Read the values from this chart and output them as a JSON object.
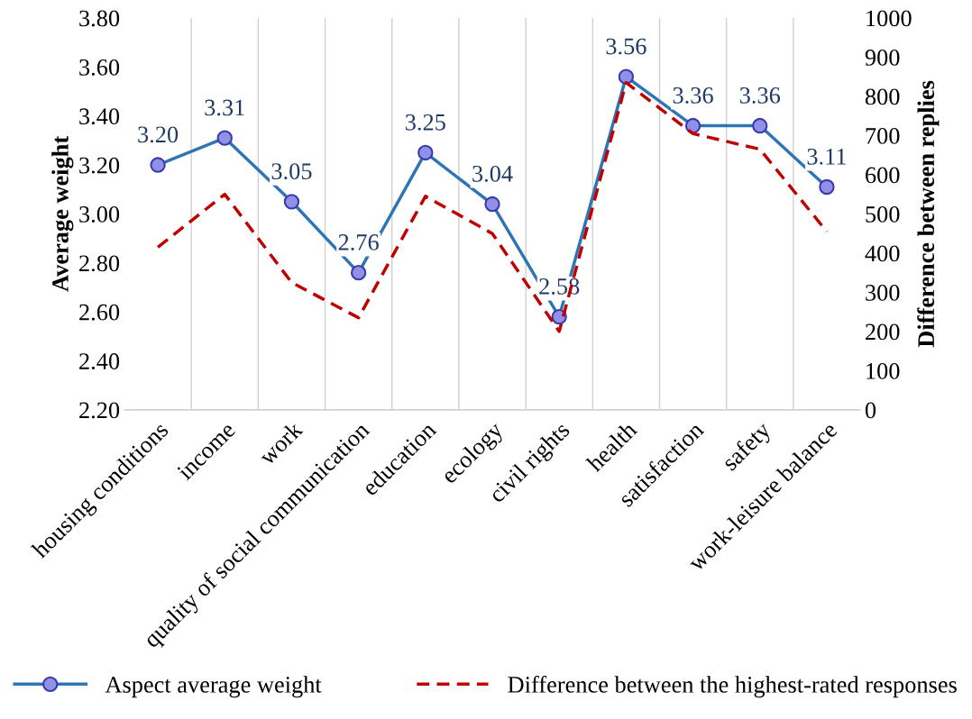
{
  "chart_data": {
    "type": "line",
    "categories": [
      "housing conditions",
      "income",
      "work",
      "quality of social communication",
      "education",
      "ecology",
      "civil rights",
      "health",
      "satisfaction",
      "safety",
      "work-leisure balance"
    ],
    "series": [
      {
        "name": "Aspect average weight",
        "color": "#2e75b6",
        "marker": "circle",
        "line_style": "solid",
        "values": [
          3.2,
          3.31,
          3.05,
          2.76,
          3.25,
          3.04,
          2.58,
          3.56,
          3.36,
          3.36,
          3.11
        ],
        "value_labels": [
          "3.20",
          "3.31",
          "3.05",
          "2.76",
          "3.25",
          "3.04",
          "2.58",
          "3.56",
          "3.36",
          "3.36",
          "3.11"
        ]
      },
      {
        "name": "Difference between the highest-rated responses",
        "color": "#c00000",
        "marker": "none",
        "line_style": "dashed",
        "axis": "y2",
        "values": [
          415,
          550,
          325,
          235,
          545,
          450,
          200,
          835,
          705,
          665,
          455
        ]
      }
    ],
    "ylabel": "Average weight",
    "y2label": "Difference between replies",
    "ylim": [
      2.2,
      3.8
    ],
    "yticks": [
      {
        "value": 2.2,
        "label": "2.20"
      },
      {
        "value": 2.4,
        "label": "2.40"
      },
      {
        "value": 2.6,
        "label": "2.60"
      },
      {
        "value": 2.8,
        "label": "2.80"
      },
      {
        "value": 3.0,
        "label": "3.00"
      },
      {
        "value": 3.2,
        "label": "3.20"
      },
      {
        "value": 3.4,
        "label": "3.40"
      },
      {
        "value": 3.6,
        "label": "3.60"
      },
      {
        "value": 3.8,
        "label": "3.80"
      }
    ],
    "y2lim": [
      0,
      1000
    ],
    "y2ticks": [
      0,
      100,
      200,
      300,
      400,
      500,
      600,
      700,
      800,
      900,
      1000
    ],
    "grid": "x",
    "legend": "bottom"
  }
}
